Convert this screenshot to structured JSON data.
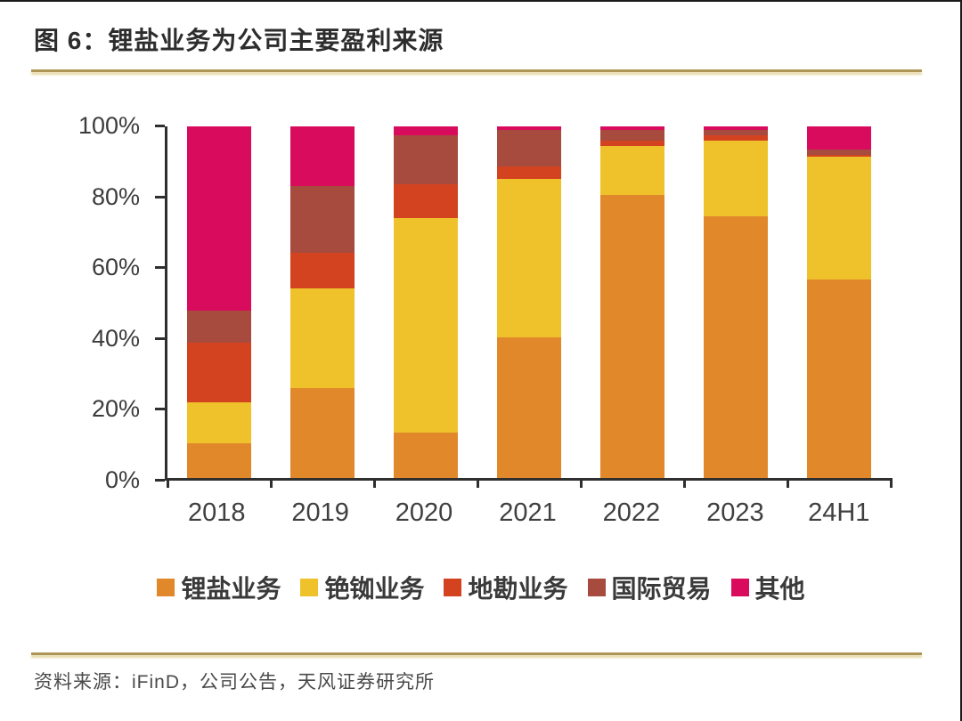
{
  "header": {
    "title": "图 6：锂盐业务为公司主要盈利来源"
  },
  "footer": {
    "source": "资料来源：iFinD，公司公告，天风证券研究所"
  },
  "colors": {
    "divider_rule": "#ad9655",
    "axis": "#2f2f2f"
  },
  "chart_data": {
    "type": "bar",
    "stacked": true,
    "stack_mode": "percent",
    "title": "锂盐业务为公司主要盈利来源",
    "xlabel": "",
    "ylabel": "",
    "ylim": [
      0,
      100
    ],
    "yticks": [
      "0%",
      "20%",
      "40%",
      "60%",
      "80%",
      "100%"
    ],
    "grid": false,
    "legend_position": "bottom",
    "categories": [
      "2018",
      "2019",
      "2020",
      "2021",
      "2022",
      "2023",
      "24H1"
    ],
    "series": [
      {
        "name": "锂盐业务",
        "color": "#E1882B",
        "values": [
          10,
          25.5,
          13,
          40,
          80.5,
          74.5,
          56.5
        ]
      },
      {
        "name": "铯铷业务",
        "color": "#EFC22C",
        "values": [
          11.5,
          28.5,
          61,
          45,
          14,
          21.5,
          35
        ]
      },
      {
        "name": "地勘业务",
        "color": "#D3431F",
        "values": [
          17,
          10,
          9.5,
          3.5,
          1.5,
          1.5,
          0.5
        ]
      },
      {
        "name": "国际贸易",
        "color": "#A74B3F",
        "values": [
          9,
          19,
          14,
          10.5,
          3,
          1.5,
          1.5
        ]
      },
      {
        "name": "其他",
        "color": "#D90B5C",
        "values": [
          52.5,
          17,
          2.5,
          1,
          1,
          1,
          6.5
        ]
      }
    ]
  }
}
